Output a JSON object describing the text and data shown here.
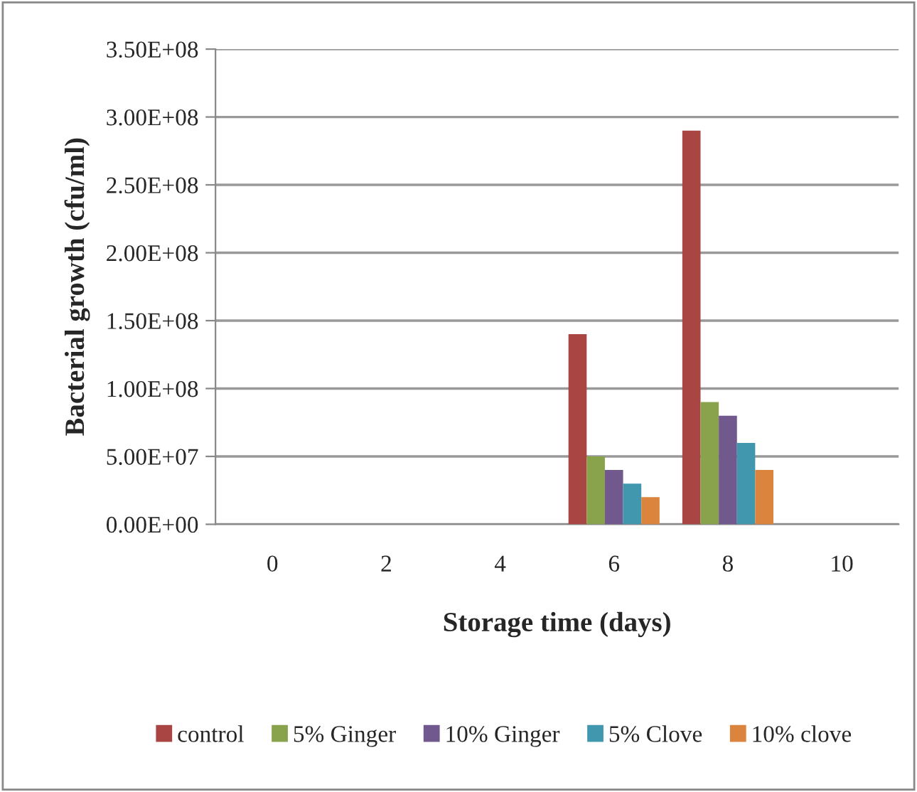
{
  "chart_data": {
    "type": "bar",
    "xlabel": "Storage time (days)",
    "ylabel": "Bacterial growth (cfu/ml)",
    "categories": [
      "0",
      "2",
      "4",
      "6",
      "8",
      "10"
    ],
    "series": [
      {
        "name": "control",
        "color": "#a94543",
        "values": [
          null,
          null,
          null,
          140000000,
          290000000,
          null
        ]
      },
      {
        "name": "5% Ginger",
        "color": "#88a34b",
        "values": [
          null,
          null,
          null,
          50000000,
          90000000,
          null
        ]
      },
      {
        "name": "10% Ginger",
        "color": "#71598e",
        "values": [
          null,
          null,
          null,
          40000000,
          80000000,
          null
        ]
      },
      {
        "name": "5% Clove",
        "color": "#4198ae",
        "values": [
          null,
          null,
          null,
          30000000,
          60000000,
          null
        ]
      },
      {
        "name": "10% clove",
        "color": "#db843d",
        "values": [
          null,
          null,
          null,
          20000000,
          40000000,
          null
        ]
      }
    ],
    "ylim": [
      0,
      350000000
    ],
    "yticks": [
      {
        "value": 0,
        "label": "0.00E+00"
      },
      {
        "value": 50000000,
        "label": "5.00E+07"
      },
      {
        "value": 100000000,
        "label": "1.00E+08"
      },
      {
        "value": 150000000,
        "label": "1.50E+08"
      },
      {
        "value": 200000000,
        "label": "2.00E+08"
      },
      {
        "value": 250000000,
        "label": "2.50E+08"
      },
      {
        "value": 300000000,
        "label": "3.00E+08"
      },
      {
        "value": 350000000,
        "label": "3.50E+08"
      }
    ],
    "grid": "y",
    "legend": "bottom"
  }
}
